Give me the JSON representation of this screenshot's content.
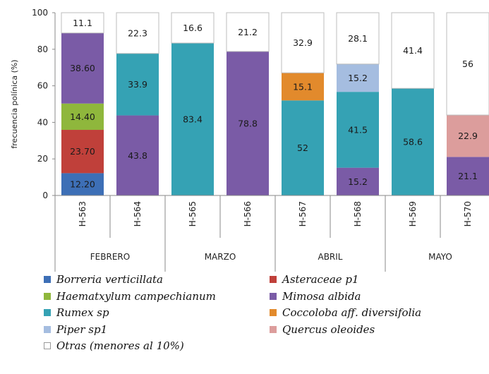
{
  "chart_data": {
    "type": "bar",
    "stacked": true,
    "ylabel": "frecuencia polínica (%)",
    "ylim": [
      0,
      100
    ],
    "yticks": [
      0,
      20,
      40,
      60,
      80,
      100
    ],
    "grid": false,
    "legend_position": "bottom",
    "categories": [
      "H-563",
      "H-564",
      "H-565",
      "H-566",
      "H-567",
      "H-568",
      "H-569",
      "H-570"
    ],
    "groups": [
      {
        "label": "FEBRERO",
        "members": [
          "H-563",
          "H-564"
        ]
      },
      {
        "label": "MARZO",
        "members": [
          "H-565",
          "H-566"
        ]
      },
      {
        "label": "ABRIL",
        "members": [
          "H-567",
          "H-568"
        ]
      },
      {
        "label": "MAYO",
        "members": [
          "H-569",
          "H-570"
        ]
      }
    ],
    "series": [
      {
        "name": "Borreria verticillata",
        "color": "#3d6fb6",
        "values": [
          12.2,
          0,
          0,
          0,
          0,
          0,
          0,
          0
        ],
        "labels": [
          "12.20",
          "",
          "",
          "",
          "",
          "",
          "",
          ""
        ]
      },
      {
        "name": "Asteraceae p1",
        "color": "#c0403a",
        "values": [
          23.7,
          0,
          0,
          0,
          0,
          0,
          0,
          0
        ],
        "labels": [
          "23.70",
          "",
          "",
          "",
          "",
          "",
          "",
          ""
        ]
      },
      {
        "name": "Haematxylum campechianum",
        "color": "#8fb73c",
        "values": [
          14.4,
          0,
          0,
          0,
          0,
          0,
          0,
          0
        ],
        "labels": [
          "14.40",
          "",
          "",
          "",
          "",
          "",
          "",
          ""
        ]
      },
      {
        "name": "Mimosa albida",
        "color": "#7a5ba6",
        "values": [
          38.6,
          43.8,
          0,
          78.8,
          0,
          15.2,
          0,
          21.1
        ],
        "labels": [
          "38.60",
          "43.8",
          "",
          "78.8",
          "",
          "15.2",
          "",
          "21.1"
        ]
      },
      {
        "name": "Rumex sp",
        "color": "#35a2b4",
        "values": [
          0,
          33.9,
          83.4,
          0,
          52,
          41.5,
          58.6,
          0
        ],
        "labels": [
          "",
          "33.9",
          "83.4",
          "",
          "52",
          "41.5",
          "58.6",
          ""
        ]
      },
      {
        "name": "Coccoloba aff. diversifolia",
        "color": "#e28a2c",
        "values": [
          0,
          0,
          0,
          0,
          15.1,
          0,
          0,
          0
        ],
        "labels": [
          "",
          "",
          "",
          "",
          "15.1",
          "",
          "",
          ""
        ]
      },
      {
        "name": "Piper sp1",
        "color": "#a5bde0",
        "values": [
          0,
          0,
          0,
          0,
          0,
          15.2,
          0,
          0
        ],
        "labels": [
          "",
          "",
          "",
          "",
          "",
          "15.2",
          "",
          ""
        ]
      },
      {
        "name": "Quercus oleoides",
        "color": "#dc9d9c",
        "values": [
          0,
          0,
          0,
          0,
          0,
          0,
          0,
          22.9
        ],
        "labels": [
          "",
          "",
          "",
          "",
          "",
          "",
          "",
          "22.9"
        ]
      },
      {
        "name": "Otras (menores al 10%)",
        "color": "#ffffff",
        "values": [
          11.1,
          22.3,
          16.6,
          21.2,
          32.9,
          28.1,
          41.4,
          56
        ],
        "labels": [
          "11.1",
          "22.3",
          "16.6",
          "21.2",
          "32.9",
          "28.1",
          "41.4",
          "56"
        ]
      }
    ]
  }
}
